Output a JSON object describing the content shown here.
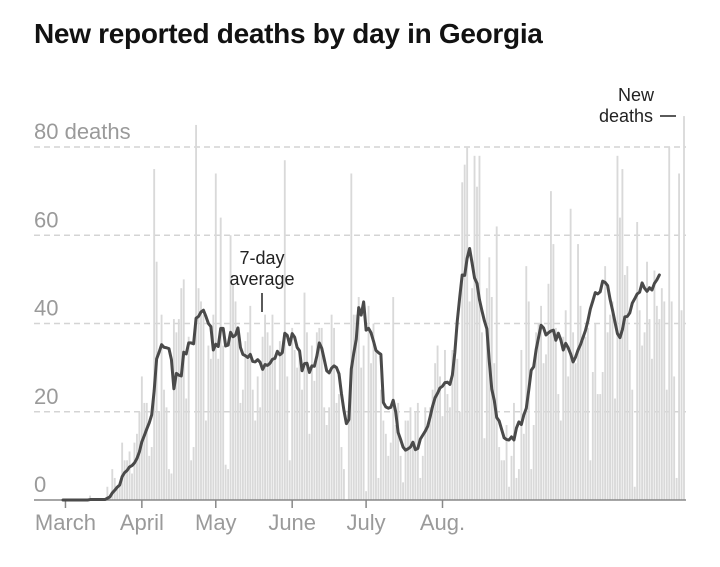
{
  "title": "New reported deaths by day in Georgia",
  "chart_data": {
    "type": "bar",
    "title": "New reported deaths by day in Georgia",
    "ylim": [
      0,
      80
    ],
    "yticks": [
      {
        "value": 80,
        "label": "80 deaths"
      },
      {
        "value": 60,
        "label": "60"
      },
      {
        "value": 40,
        "label": "40"
      },
      {
        "value": 20,
        "label": "20"
      },
      {
        "value": 0,
        "label": "0"
      }
    ],
    "xticks": [
      {
        "label": "March",
        "index": 1
      },
      {
        "label": "April",
        "index": 32
      },
      {
        "label": "May",
        "index": 62
      },
      {
        "label": "June",
        "index": 93
      },
      {
        "label": "July",
        "index": 123
      },
      {
        "label": "Aug.",
        "index": 154
      }
    ],
    "grid": true,
    "colors": {
      "bars": "#d9d9d9",
      "average": "#4a4a4a",
      "grid": "#d4d4d4",
      "axis": "#888888",
      "ticks": "#9a9a9a"
    },
    "annotations": {
      "average": {
        "line1": "7-day",
        "line2": "average"
      },
      "bars": {
        "line1": "New",
        "line2": "deaths"
      }
    },
    "series": [
      {
        "name": "New deaths",
        "values": [
          0,
          0,
          0,
          0,
          0,
          0,
          0,
          0,
          0,
          0,
          0,
          1,
          0,
          0,
          0,
          0,
          0,
          0,
          3,
          1,
          7,
          5,
          3,
          4,
          13,
          9,
          9,
          11,
          6,
          13,
          15,
          20,
          28,
          22,
          22,
          10,
          12,
          75,
          54,
          20,
          42,
          25,
          21,
          7,
          6,
          41,
          38,
          41,
          48,
          50,
          23,
          37,
          9,
          12,
          85,
          48,
          45,
          42,
          18,
          35,
          32,
          42,
          74,
          32,
          64,
          35,
          8,
          7,
          60,
          49,
          45,
          38,
          22,
          25,
          36,
          38,
          44,
          25,
          18,
          28,
          21,
          37,
          42,
          38,
          35,
          42,
          32,
          25,
          36,
          34,
          77,
          28,
          9,
          39,
          34,
          30,
          34,
          25,
          47,
          38,
          15,
          35,
          27,
          38,
          39,
          39,
          21,
          17,
          21,
          42,
          39,
          22,
          24,
          12,
          7,
          0,
          18,
          74,
          42,
          42,
          46,
          30,
          35,
          2,
          44,
          31,
          40,
          34,
          5,
          25,
          18,
          15,
          10,
          13,
          46,
          17,
          22,
          10,
          4,
          18,
          18,
          21,
          13,
          20,
          22,
          5,
          10,
          21,
          17,
          21,
          25,
          31,
          35,
          28,
          19,
          34,
          24,
          21,
          34,
          35,
          32,
          20,
          72,
          76,
          80,
          45,
          48,
          78,
          71,
          78,
          38,
          14,
          48,
          55,
          46,
          31,
          62,
          12,
          9,
          9,
          17,
          3,
          10,
          22,
          5,
          7,
          34,
          15,
          53,
          45,
          7,
          17,
          38,
          40,
          44,
          31,
          33,
          49,
          70,
          58,
          39,
          24,
          18,
          37,
          43,
          28,
          66,
          38,
          31,
          58,
          44,
          36,
          37,
          39,
          9,
          29,
          40,
          24,
          24,
          29,
          53,
          38,
          42,
          45,
          23,
          78,
          64,
          75,
          51,
          53,
          34,
          25,
          3,
          63,
          43,
          35,
          38,
          54,
          41,
          32,
          52,
          44,
          41,
          48,
          45,
          25,
          80,
          45,
          28,
          5,
          74,
          43,
          87
        ]
      },
      {
        "name": "7-day average",
        "values": [
          0,
          0,
          0,
          0,
          0,
          0,
          0,
          0,
          0,
          0,
          0,
          0.1,
          0.1,
          0.1,
          0.1,
          0.1,
          0.1,
          0.1,
          0.4,
          0.7,
          1.6,
          2.2,
          2.9,
          3.4,
          5.3,
          6.2,
          6.7,
          7.5,
          7.8,
          8.4,
          9.4,
          10.9,
          13.2,
          14.6,
          16.1,
          17.5,
          19.3,
          24.8,
          32.0,
          33.5,
          35.2,
          34.6,
          34.5,
          34.3,
          31.8,
          25.2,
          28.7,
          28.3,
          28.1,
          33.5,
          33.1,
          35.6,
          35.6,
          35.4,
          41.2,
          41.6,
          42.6,
          43.0,
          41.6,
          40.0,
          39.3,
          34.0,
          35.3,
          34.8,
          38.9,
          38.9,
          34.9,
          35.1,
          38.0,
          37.0,
          37.4,
          39.0,
          34.6,
          33.0,
          32.7,
          32.3,
          33.0,
          31.4,
          31.3,
          31.8,
          31.2,
          29.6,
          30.7,
          30.5,
          31.0,
          31.9,
          32.1,
          33.7,
          32.9,
          33.4,
          37.8,
          37.3,
          35.2,
          37.7,
          36.9,
          34.6,
          33.8,
          29.3,
          30.9,
          31.0,
          28.9,
          30.4,
          30.3,
          32.6,
          35.6,
          34.4,
          31.9,
          29.3,
          28.8,
          29.9,
          30.4,
          30.0,
          28.6,
          24.1,
          20.3,
          17.3,
          18.2,
          29.7,
          33.3,
          36.4,
          43.6,
          41.9,
          44.9,
          38.5,
          38.9,
          37.9,
          36.0,
          33.9,
          33.4,
          33.0,
          22.1,
          21.1,
          20.8,
          21.0,
          22.6,
          20.0,
          15.3,
          13.7,
          12.0,
          11.3,
          11.6,
          12.0,
          13.1,
          11.4,
          11.7,
          13.8,
          14.7,
          15.6,
          16.7,
          18.9,
          21.3,
          23.2,
          24.2,
          25.4,
          25.8,
          26.6,
          26.7,
          26.2,
          28.3,
          33.4,
          40.6,
          46.0,
          51.0,
          50.9,
          54.8,
          57.0,
          53.7,
          50.3,
          49.1,
          45.4,
          42.9,
          40.6,
          38.8,
          31.3,
          25.1,
          22.6,
          18.7,
          17.9,
          16.0,
          14.1,
          13.7,
          13.6,
          14.3,
          13.6,
          16.3,
          17.7,
          17.1,
          19.3,
          20.8,
          24.9,
          29.4,
          30.2,
          34.1,
          36.9,
          39.6,
          39.0,
          37.4,
          37.9,
          38.3,
          38.5,
          36.2,
          37.8,
          36.3,
          34.0,
          35.5,
          34.5,
          33.1,
          31.3,
          32.4,
          34.0,
          35.2,
          36.8,
          38.4,
          40.6,
          43.3,
          45.1,
          47.0,
          46.7,
          47.2,
          49.6,
          49.3,
          48.6,
          45.5,
          43.0,
          40.3,
          37.7,
          36.8,
          38.6,
          41.5,
          41.6,
          42.4,
          44.6,
          45.6,
          46.7,
          47.1,
          49.2,
          48.0,
          47.3,
          48.1,
          47.6,
          49.1,
          49.9,
          51.0
        ]
      }
    ]
  }
}
